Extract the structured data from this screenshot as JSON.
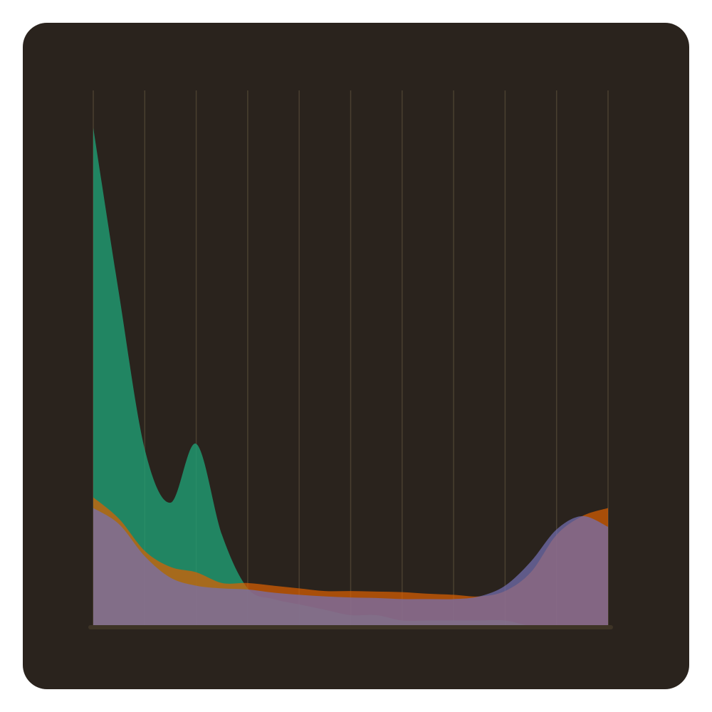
{
  "chart_data": {
    "type": "area",
    "title": "",
    "xlabel": "",
    "ylabel": "",
    "x": [
      0,
      0.5,
      1,
      1.5,
      2,
      2.5,
      3,
      3.5,
      4,
      4.5,
      5,
      5.5,
      6,
      6.5,
      7,
      7.5,
      8,
      8.5,
      9,
      9.5,
      10
    ],
    "xlim": [
      0,
      10
    ],
    "ylim": [
      0,
      1
    ],
    "grid": {
      "vertical": true,
      "horizontal": false,
      "x_lines": [
        0,
        1,
        2,
        3,
        4,
        5,
        6,
        7,
        8,
        9,
        10
      ]
    },
    "legend": "none",
    "colors": {
      "background": "#2a231d",
      "grid": "#4a4030",
      "baseline": "#3e3426"
    },
    "series": [
      {
        "color": "#1f9e74",
        "opacity": 0.8,
        "values": [
          0.93,
          0.62,
          0.33,
          0.23,
          0.34,
          0.17,
          0.07,
          0.05,
          0.04,
          0.03,
          0.02,
          0.02,
          0.01,
          0.01,
          0.01,
          0.01,
          0.01,
          0.0,
          0.0,
          0.0,
          0.0
        ]
      },
      {
        "color": "#d95f02",
        "opacity": 0.72,
        "values": [
          0.24,
          0.2,
          0.14,
          0.11,
          0.1,
          0.08,
          0.08,
          0.075,
          0.07,
          0.065,
          0.065,
          0.064,
          0.063,
          0.06,
          0.058,
          0.055,
          0.065,
          0.1,
          0.17,
          0.205,
          0.22
        ]
      },
      {
        "color": "#7570b3",
        "opacity": 0.72,
        "values": [
          0.22,
          0.19,
          0.13,
          0.09,
          0.075,
          0.07,
          0.068,
          0.062,
          0.058,
          0.055,
          0.053,
          0.052,
          0.05,
          0.05,
          0.05,
          0.055,
          0.075,
          0.12,
          0.18,
          0.205,
          0.185
        ]
      }
    ]
  }
}
